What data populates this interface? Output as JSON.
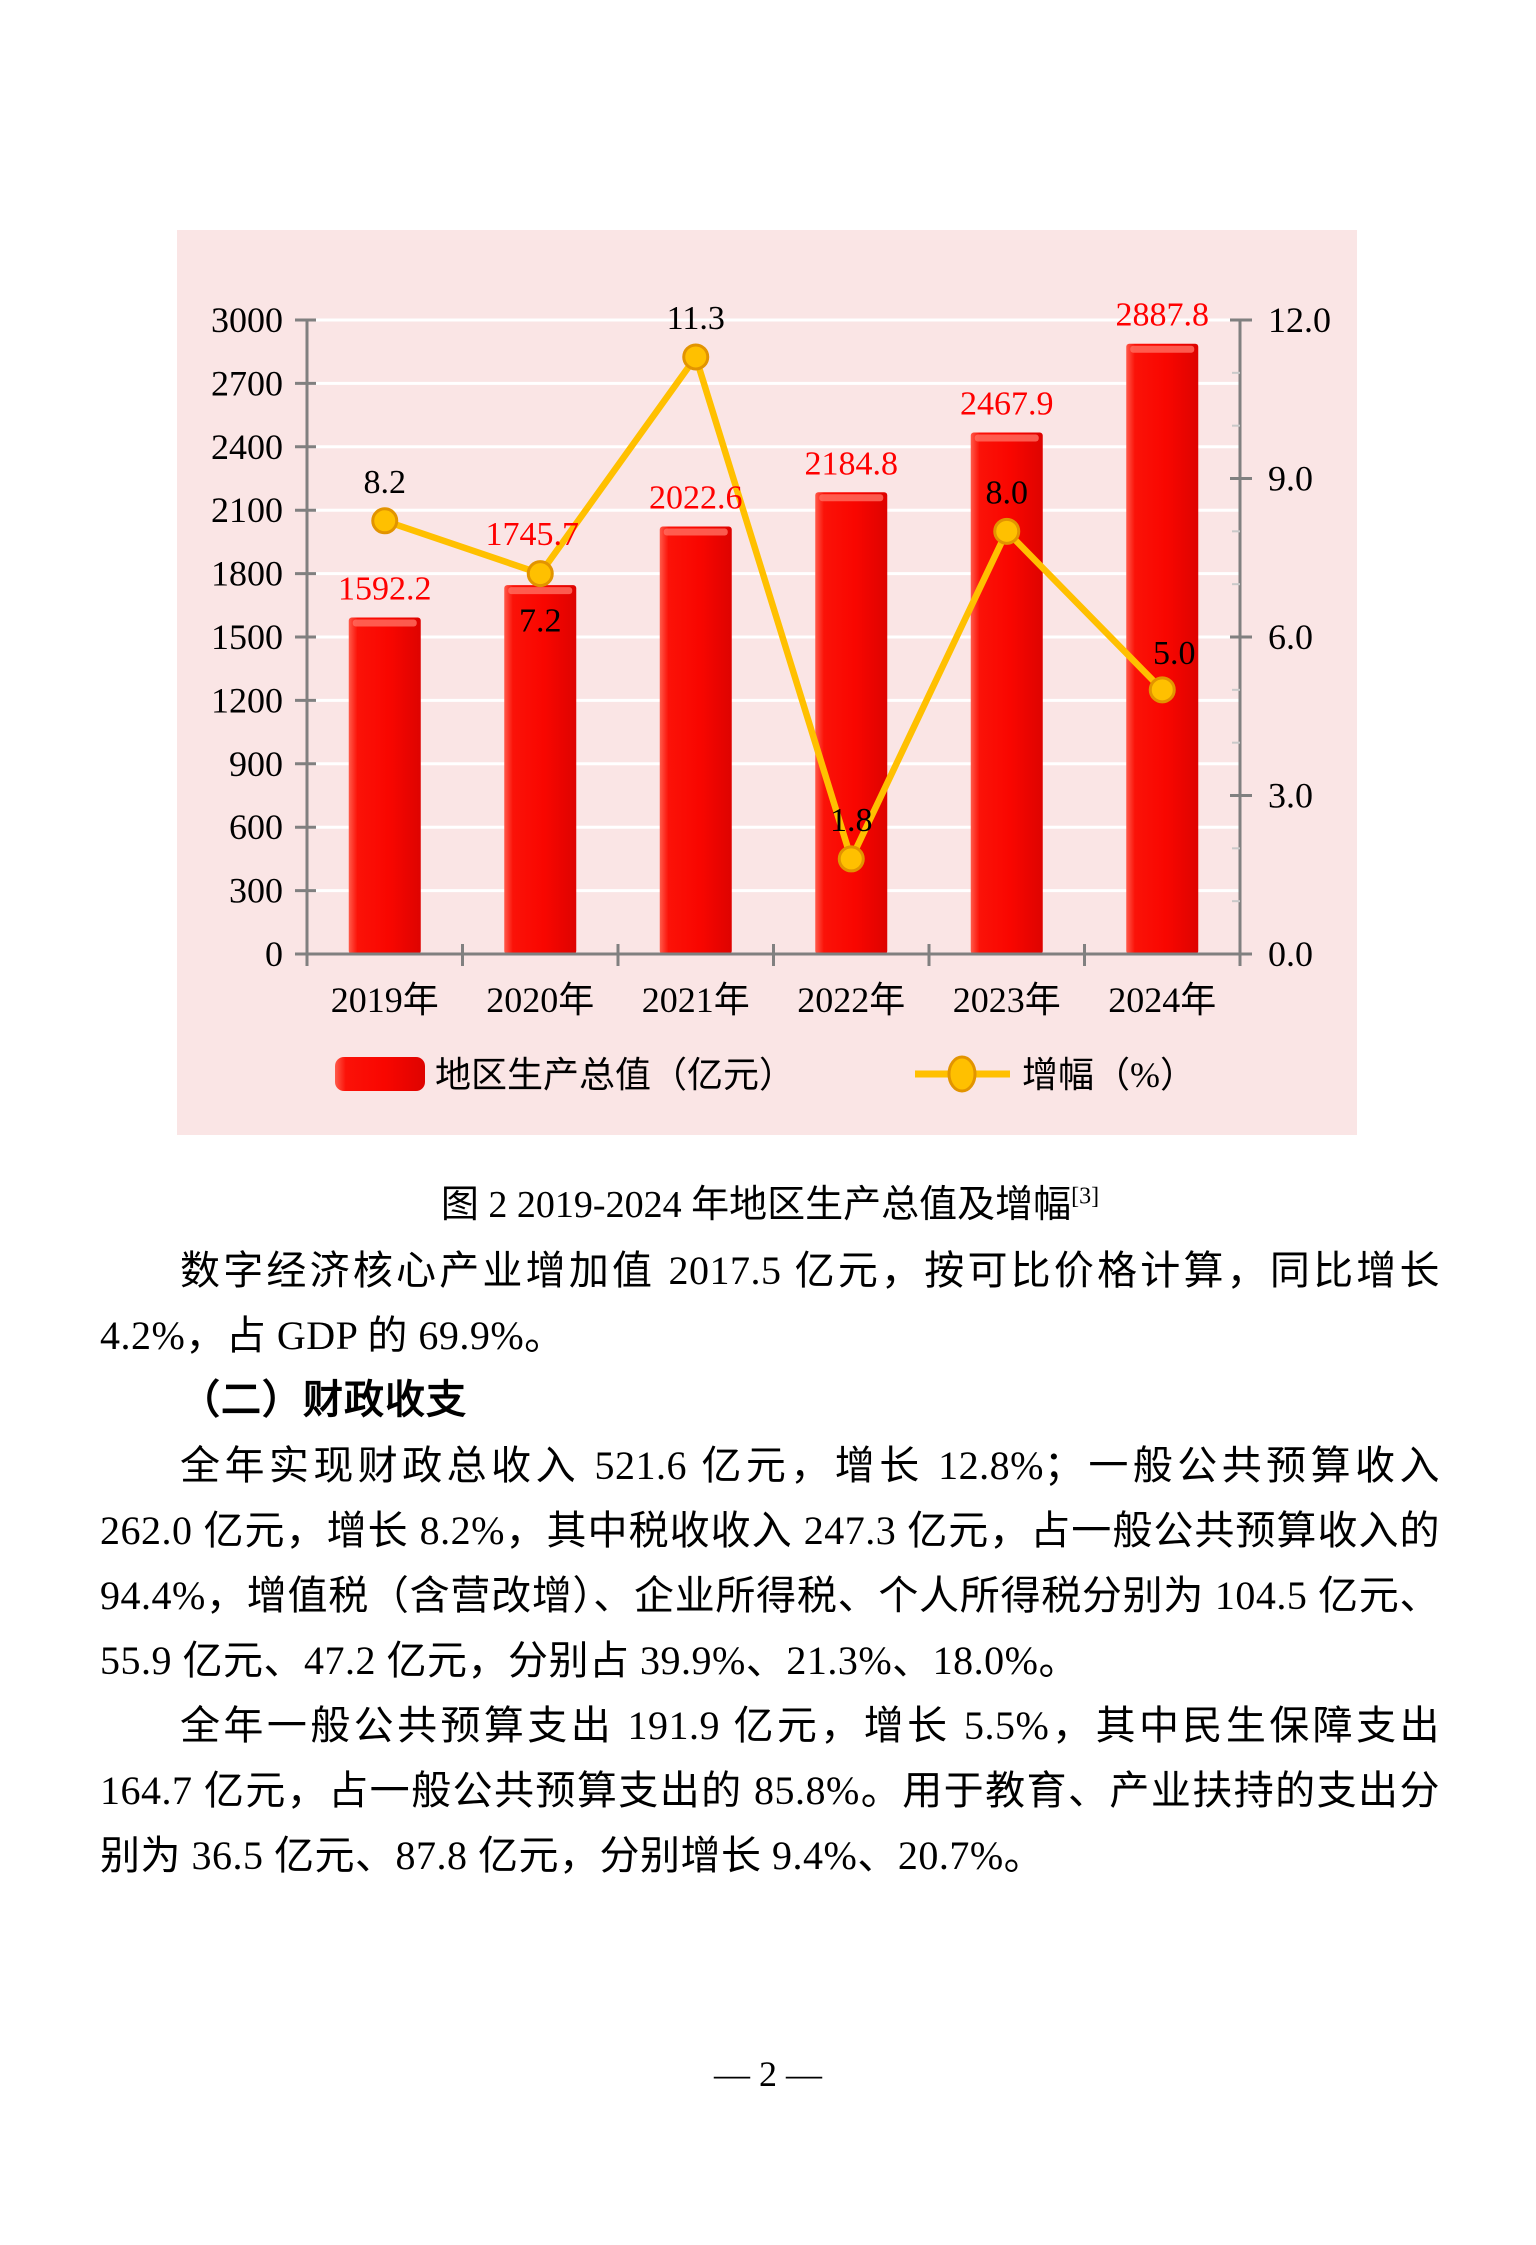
{
  "page": {
    "footer": "— 2 —"
  },
  "figure": {
    "caption": "图 2  2019-2024 年地区生产总值及增幅",
    "caption_footnote": "[3]"
  },
  "chart_data": {
    "type": "bar+line (dual axis)",
    "categories": [
      "2019年",
      "2020年",
      "2021年",
      "2022年",
      "2023年",
      "2024年"
    ],
    "series": [
      {
        "name": "地区生产总值（亿元）",
        "type": "bar",
        "axis": "left",
        "values": [
          1592.2,
          1745.7,
          2022.6,
          2184.8,
          2467.9,
          2887.8
        ],
        "labels": [
          "1592.2",
          "1745.7",
          "2022.6",
          "2184.8",
          "2467.9",
          "2887.8"
        ]
      },
      {
        "name": "增幅（%）",
        "type": "line",
        "axis": "right",
        "values": [
          8.2,
          7.2,
          11.3,
          1.8,
          8.0,
          5.0
        ],
        "labels": [
          "8.2",
          "7.2",
          "11.3",
          "1.8",
          "8.0",
          "5.0"
        ]
      }
    ],
    "left_axis": {
      "min": 0,
      "max": 3000,
      "step": 300,
      "labels": [
        "0",
        "300",
        "600",
        "900",
        "1200",
        "1500",
        "1800",
        "2100",
        "2400",
        "2700",
        "3000"
      ]
    },
    "right_axis": {
      "min": 0,
      "max": 12,
      "step": 3,
      "minor_step": 1,
      "labels": [
        "0.0",
        "3.0",
        "6.0",
        "9.0",
        "12.0"
      ]
    },
    "legend_position": "bottom",
    "grid": "on",
    "colors": {
      "background": "#FAE5E5",
      "bar": "#F90600",
      "bar_highlight": "#FF6A5C",
      "bar_label": "#FF0000",
      "line": "#FFC000",
      "marker_fill": "#FFC000",
      "marker_stroke": "#E29400",
      "grid": "#FFFFFF",
      "axis": "#808080",
      "text": "#000000"
    }
  },
  "body": [
    {
      "type": "p",
      "text": "数字经济核心产业增加值 2017.5 亿元，按可比价格计算，同比增长 4.2%，占 GDP 的 69.9%。"
    },
    {
      "type": "h",
      "text": "（二）财政收支"
    },
    {
      "type": "p",
      "text": "全年实现财政总收入 521.6 亿元，增长 12.8%；一般公共预算收入 262.0 亿元，增长 8.2%，其中税收收入 247.3 亿元，占一般公共预算收入的 94.4%，增值税（含营改增）、企业所得税、个人所得税分别为 104.5 亿元、55.9 亿元、47.2 亿元，分别占 39.9%、21.3%、18.0%。"
    },
    {
      "type": "p",
      "text": "全年一般公共预算支出 191.9 亿元，增长 5.5%，其中民生保障支出 164.7 亿元，占一般公共预算支出的 85.8%。用于教育、产业扶持的支出分别为 36.5 亿元、87.8 亿元，分别增长 9.4%、20.7%。"
    }
  ]
}
